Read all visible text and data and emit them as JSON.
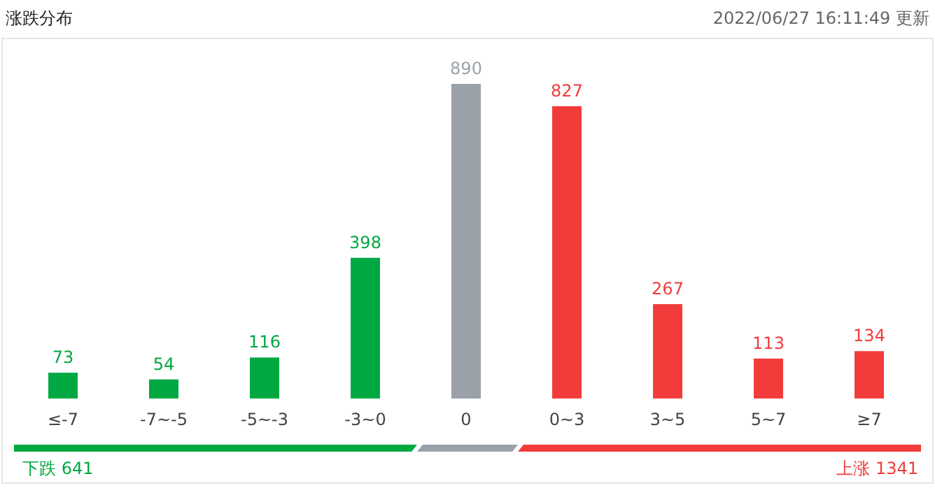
{
  "chart_data": {
    "type": "bar",
    "title": "涨跌分布",
    "subtitle": "2022/06/27 16:11:49  更新",
    "categories": [
      "≤-7",
      "-7~-5",
      "-5~-3",
      "-3~0",
      "0",
      "0~3",
      "3~5",
      "5~7",
      "≥7"
    ],
    "values": [
      73,
      54,
      116,
      398,
      890,
      827,
      267,
      113,
      134
    ],
    "colors": [
      "#00a842",
      "#00a842",
      "#00a842",
      "#00a842",
      "#9aa1a9",
      "#f23c3c",
      "#f23c3c",
      "#f23c3c",
      "#f23c3c"
    ],
    "data_labels": true,
    "annotations": [
      "下跌 641",
      "上涨 1341"
    ]
  }
}
